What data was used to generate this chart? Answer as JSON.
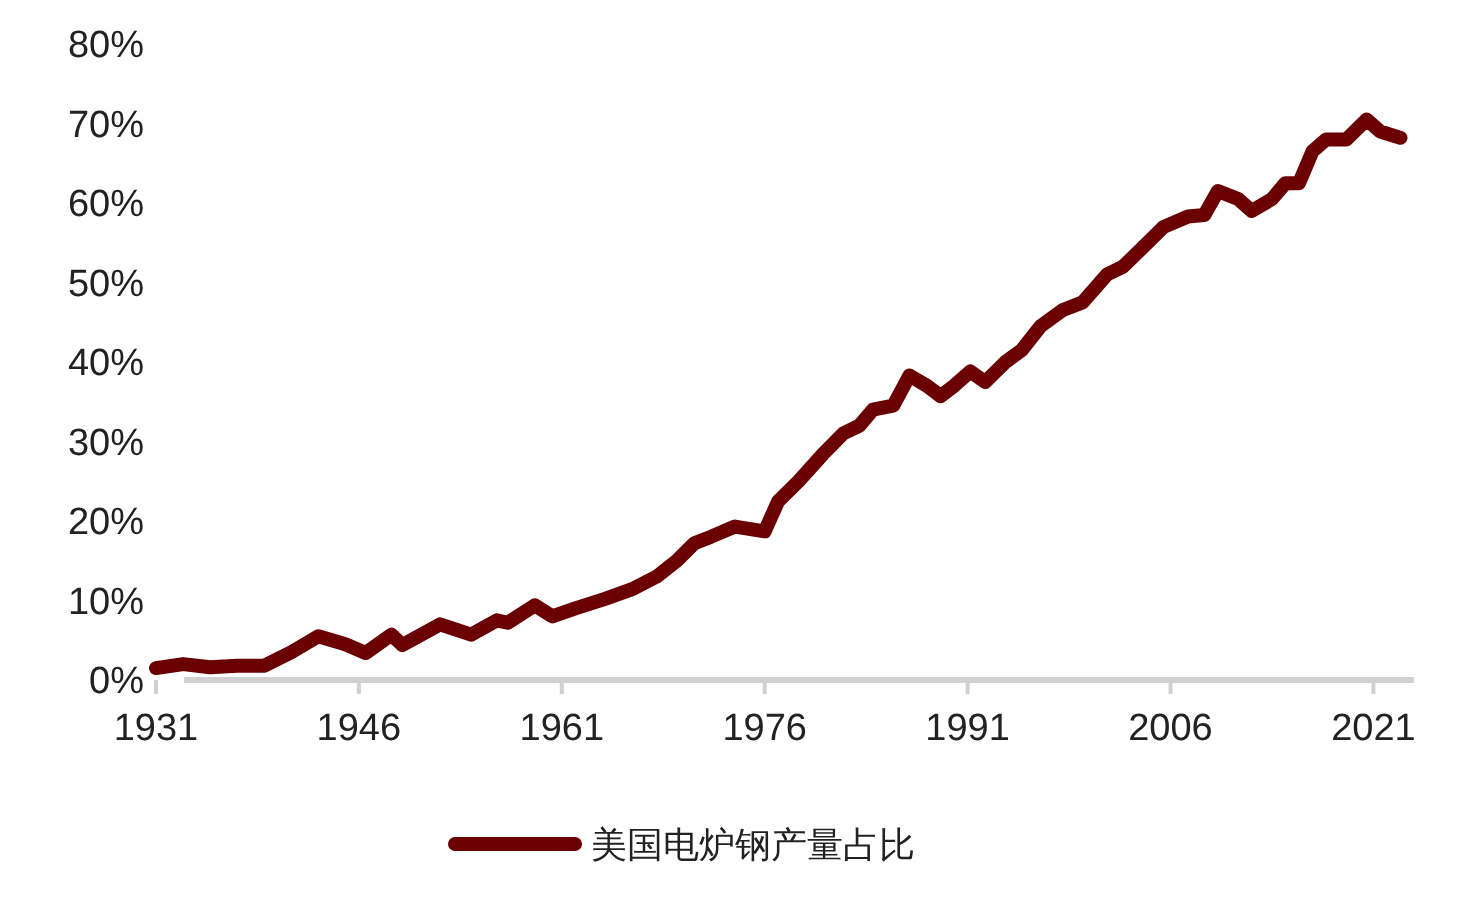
{
  "chart_data": {
    "type": "line",
    "x": [
      1931,
      1933,
      1935,
      1937,
      1939,
      1941,
      1943,
      1945,
      1946.5,
      1948.4,
      1949.2,
      1952,
      1954.3,
      1956.2,
      1957,
      1959,
      1960.3,
      1962,
      1964.2,
      1966.3,
      1968,
      1969.5,
      1970.8,
      1972,
      1973.8,
      1976,
      1977,
      1978.5,
      1980.3,
      1981.8,
      1983,
      1984,
      1985.5,
      1986.7,
      1988,
      1989,
      1990,
      1991.2,
      1992.3,
      1993.8,
      1995,
      1996.4,
      1998,
      1999.5,
      2001.3,
      2002.5,
      2004.3,
      2005.5,
      2007.3,
      2008.5,
      2009.5,
      2011,
      2012,
      2013.5,
      2014.5,
      2015.5,
      2016.5,
      2017.5,
      2019,
      2020.5,
      2021.5,
      2023
    ],
    "series": [
      {
        "name": "美国电炉钢产量占比",
        "color": "#6b0000",
        "values": [
          1.5,
          2,
          1.6,
          1.8,
          1.8,
          3.5,
          5.5,
          4.5,
          3.4,
          5.7,
          4.4,
          7,
          5.7,
          7.5,
          7.2,
          9.4,
          8,
          9,
          10.2,
          11.5,
          13,
          15,
          17.2,
          18,
          19.3,
          18.7,
          22.5,
          25,
          28.4,
          31,
          32,
          34,
          34.5,
          38.3,
          37,
          35.7,
          37,
          38.8,
          37.5,
          40,
          41.5,
          44.5,
          46.5,
          47.5,
          51,
          52,
          55,
          57,
          58.3,
          58.5,
          61.5,
          60.5,
          59,
          60.5,
          62.5,
          62.5,
          66.5,
          68,
          68,
          70.5,
          69,
          68.2
        ]
      }
    ],
    "xlim": [
      1931,
      2024
    ],
    "xticks": [
      1931,
      1946,
      1961,
      1976,
      1991,
      2006,
      2021
    ],
    "ylim": [
      0,
      80
    ],
    "yticks": [
      {
        "value": 0,
        "label": "0%"
      },
      {
        "value": 10,
        "label": "10%"
      },
      {
        "value": 20,
        "label": "20%"
      },
      {
        "value": 30,
        "label": "30%"
      },
      {
        "value": 40,
        "label": "40%"
      },
      {
        "value": 50,
        "label": "50%"
      },
      {
        "value": 60,
        "label": "60%"
      },
      {
        "value": 70,
        "label": "70%"
      },
      {
        "value": 80,
        "label": "80%"
      }
    ],
    "legend": "bottom",
    "grid": false
  }
}
